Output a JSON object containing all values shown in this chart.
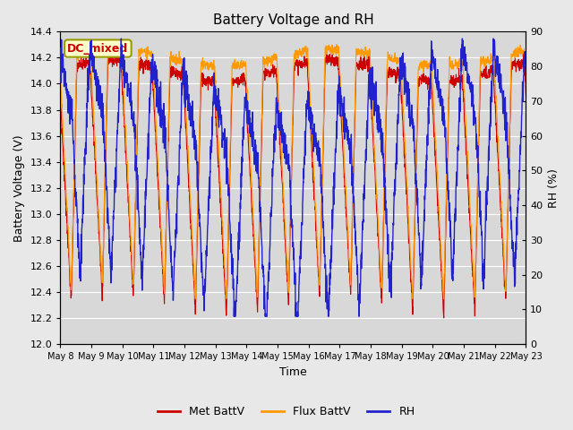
{
  "title": "Battery Voltage and RH",
  "xlabel": "Time",
  "ylabel_left": "Battery Voltage (V)",
  "ylabel_right": "RH (%)",
  "annotation": "DC_mixed",
  "ylim_left": [
    12.0,
    14.4
  ],
  "ylim_right": [
    0,
    90
  ],
  "yticks_left": [
    12.0,
    12.2,
    12.4,
    12.6,
    12.8,
    13.0,
    13.2,
    13.4,
    13.6,
    13.8,
    14.0,
    14.2,
    14.4
  ],
  "yticks_right": [
    0,
    10,
    20,
    30,
    40,
    50,
    60,
    70,
    80,
    90
  ],
  "n_days": 15,
  "xtick_labels": [
    "May 8",
    "May 9",
    "May 10",
    "May 11",
    "May 12",
    "May 13",
    "May 14",
    "May 15",
    "May 16",
    "May 17",
    "May 18",
    "May 19",
    "May 20",
    "May 21",
    "May 22",
    "May 23"
  ],
  "line_colors": {
    "met_battv": "#cc0000",
    "flux_battv": "#ff9900",
    "rh": "#2222cc"
  },
  "line_widths": {
    "met_battv": 0.8,
    "flux_battv": 0.8,
    "rh": 1.0
  },
  "legend_labels": [
    "Met BattV",
    "Flux BattV",
    "RH"
  ],
  "fig_facecolor": "#e8e8e8",
  "plot_bg_color": "#d8d8d8",
  "grid_color": "#ffffff",
  "annotation_bg": "#ffffcc",
  "annotation_border": "#999900",
  "annotation_text_color": "#cc0000",
  "title_fontsize": 11,
  "label_fontsize": 9,
  "tick_fontsize": 8
}
